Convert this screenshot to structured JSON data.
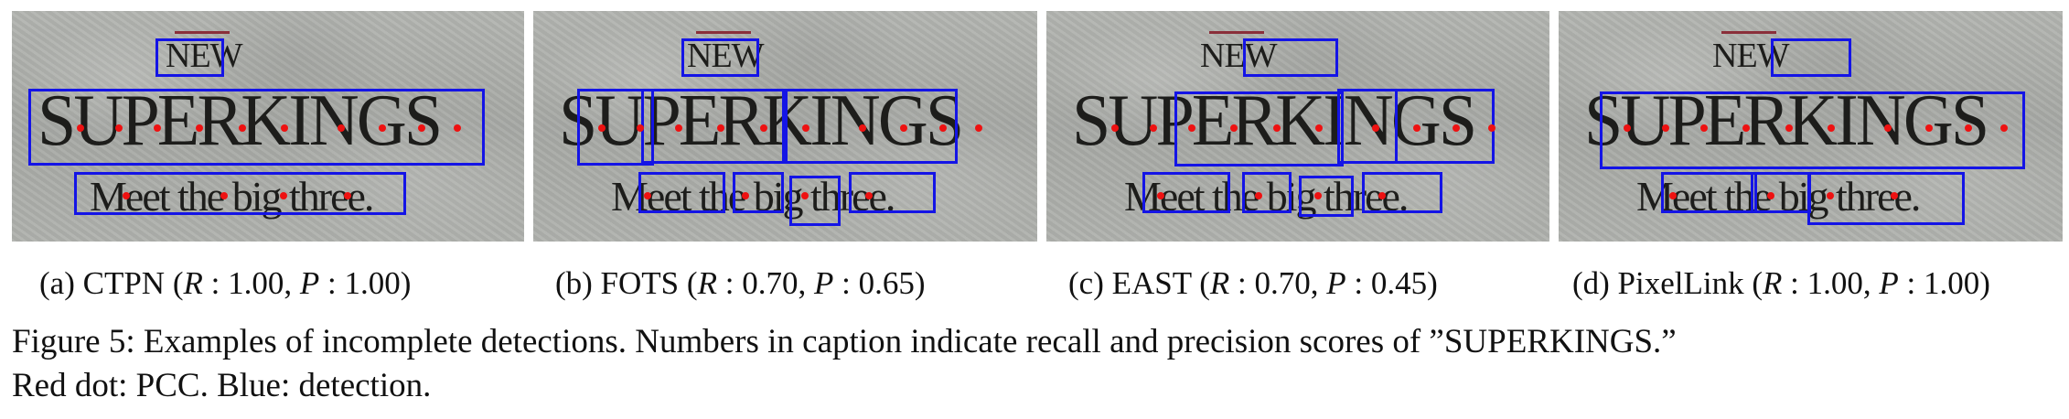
{
  "figure": {
    "words": {
      "top": "NEW",
      "main": "SUPERKINGS",
      "sub": "Meet the big three."
    },
    "panels": [
      {
        "label_prefix": "(a) CTPN",
        "recall": "1.00",
        "precision": "1.00"
      },
      {
        "label_prefix": "(b) FOTS",
        "recall": "0.70",
        "precision": "0.65"
      },
      {
        "label_prefix": "(c) EAST",
        "recall": "0.70",
        "precision": "0.45"
      },
      {
        "label_prefix": "(d) PixelLink",
        "recall": "1.00",
        "precision": "1.00"
      }
    ],
    "symbols": {
      "recall": "R",
      "precision": "P"
    },
    "caption_line1": "Figure 5: Examples of incomplete detections. Numbers in caption indicate recall and precision scores of ”SUPERKINGS.”",
    "caption_line2": "Red dot: PCC. Blue: detection.",
    "colors": {
      "detection": "#1414e6",
      "pcc": "#ee1111"
    }
  }
}
